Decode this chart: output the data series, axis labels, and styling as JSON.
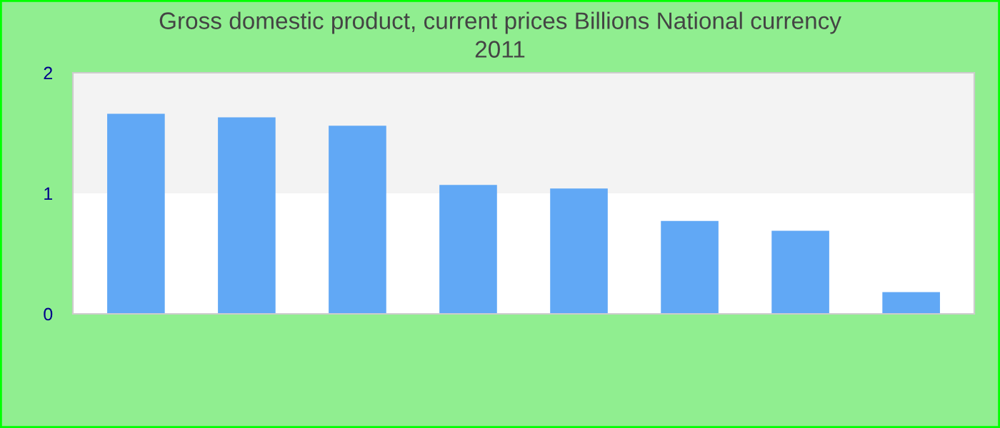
{
  "chart_data": {
    "type": "bar",
    "title": "Gross domestic product, current prices Billions National currency",
    "subtitle": "2011",
    "categories": [
      null,
      null,
      null,
      null,
      null,
      null,
      null,
      null
    ],
    "values": [
      1.66,
      1.63,
      1.56,
      1.07,
      1.04,
      0.77,
      0.69,
      0.18
    ],
    "color": "#61a8f5",
    "ylim": [
      0,
      2
    ],
    "yticks": [
      0,
      1,
      2
    ],
    "bands": [
      {
        "axis": "y",
        "from": 1,
        "to": 2,
        "color": "#f3f3f3"
      }
    ]
  }
}
